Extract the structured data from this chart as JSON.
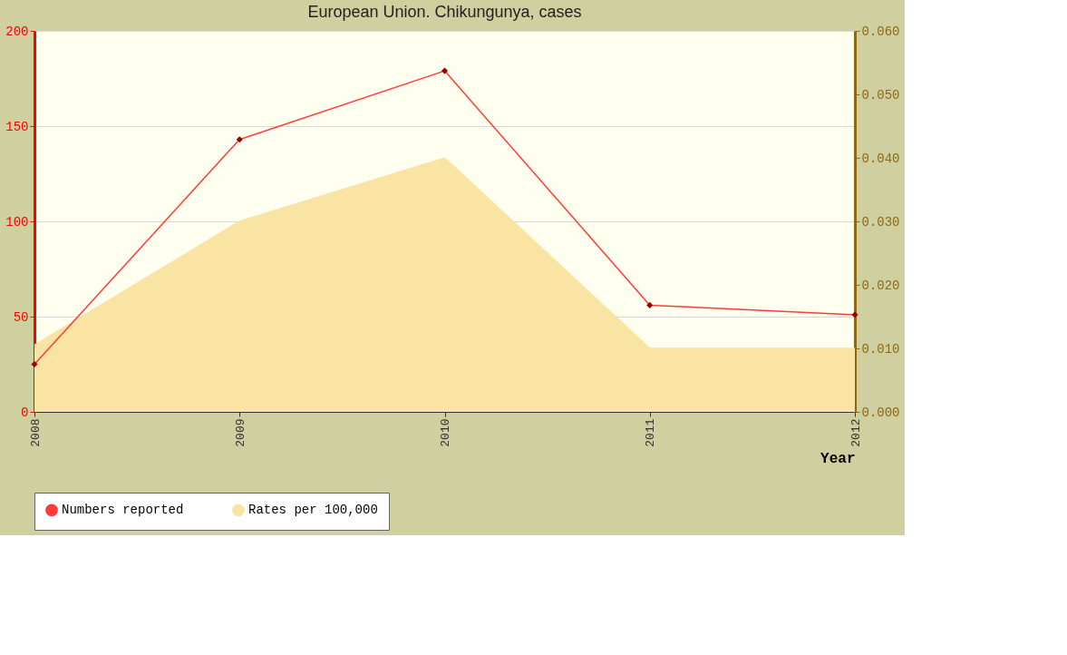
{
  "chart_data": {
    "type": "line",
    "title": "European Union. Chikungunya, cases",
    "xlabel": "Year",
    "x": [
      2008,
      2009,
      2010,
      2011,
      2012
    ],
    "xlim": [
      2008,
      2012
    ],
    "xticks": [
      2008,
      2009,
      2010,
      2011,
      2012
    ],
    "ylim": [
      0,
      200
    ],
    "yticks": [
      0,
      50,
      100,
      150,
      200
    ],
    "y2lim": [
      0,
      0.06
    ],
    "y2ticks": [
      {
        "value": 0,
        "label": "0.000"
      },
      {
        "value": 0.01,
        "label": "0.010"
      },
      {
        "value": 0.02,
        "label": "0.020"
      },
      {
        "value": 0.03,
        "label": "0.030"
      },
      {
        "value": 0.04,
        "label": "0.040"
      },
      {
        "value": 0.05,
        "label": "0.050"
      },
      {
        "value": 0.06,
        "label": "0.060"
      }
    ],
    "series": [
      {
        "name": "Numbers reported",
        "color": "#ff3b3b",
        "marker": "diamond",
        "values": [
          25,
          143,
          179,
          56,
          51
        ]
      },
      {
        "name": "Rates per 100,000",
        "type": "area",
        "axis": "y2",
        "color": "#f9e4a3",
        "values": [
          0.0105,
          0.03,
          0.04,
          0.01,
          0.01
        ]
      }
    ],
    "grid": "y",
    "legend": "bottom",
    "line_style": "solid"
  }
}
